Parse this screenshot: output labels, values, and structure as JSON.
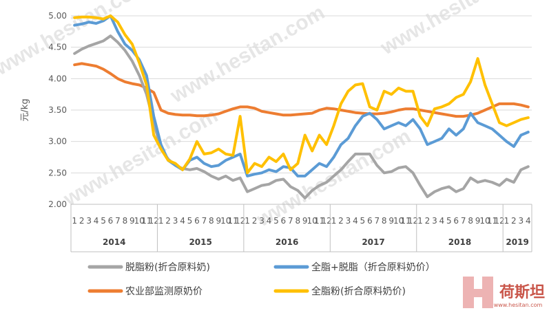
{
  "chart_data": {
    "type": "line",
    "ylabel": "元/kg",
    "ylim": [
      2.0,
      5.0
    ],
    "yticks": [
      "2.00",
      "2.50",
      "3.00",
      "3.50",
      "4.00",
      "4.50",
      "5.00"
    ],
    "grid": true,
    "legend_position": "bottom",
    "years": [
      {
        "label": "2014",
        "months": 12
      },
      {
        "label": "2015",
        "months": 12
      },
      {
        "label": "2016",
        "months": 12
      },
      {
        "label": "2017",
        "months": 12
      },
      {
        "label": "2018",
        "months": 12
      },
      {
        "label": "2019",
        "months": 4
      }
    ],
    "series": [
      {
        "name": "脱脂粉(折合原料奶)",
        "color": "#a5a5a5",
        "values": [
          4.4,
          4.47,
          4.52,
          4.56,
          4.6,
          4.68,
          4.58,
          4.45,
          4.28,
          4.05,
          3.75,
          3.3,
          2.88,
          2.72,
          2.62,
          2.57,
          2.55,
          2.57,
          2.52,
          2.45,
          2.4,
          2.45,
          2.38,
          2.42,
          2.2,
          2.25,
          2.3,
          2.32,
          2.38,
          2.4,
          2.28,
          2.22,
          2.1,
          2.22,
          2.3,
          2.35,
          2.45,
          2.55,
          2.68,
          2.8,
          2.8,
          2.8,
          2.62,
          2.5,
          2.52,
          2.58,
          2.6,
          2.5,
          2.3,
          2.12,
          2.2,
          2.25,
          2.28,
          2.2,
          2.25,
          2.42,
          2.35,
          2.38,
          2.35,
          2.3,
          2.4,
          2.35,
          2.55,
          2.6
        ]
      },
      {
        "name": "全脂+脱脂（折合原料奶价）",
        "color": "#5b9bd5",
        "values": [
          4.85,
          4.87,
          4.9,
          4.88,
          4.92,
          5.0,
          4.75,
          4.55,
          4.45,
          4.3,
          4.05,
          3.4,
          2.95,
          2.7,
          2.62,
          2.55,
          2.7,
          2.75,
          2.65,
          2.6,
          2.62,
          2.7,
          2.75,
          2.8,
          2.45,
          2.48,
          2.5,
          2.55,
          2.52,
          2.6,
          2.58,
          2.45,
          2.45,
          2.55,
          2.65,
          2.6,
          2.75,
          2.95,
          3.05,
          3.25,
          3.4,
          3.45,
          3.35,
          3.2,
          3.25,
          3.3,
          3.25,
          3.35,
          3.2,
          2.95,
          3.0,
          3.05,
          3.2,
          3.1,
          3.2,
          3.45,
          3.3,
          3.25,
          3.2,
          3.1,
          3.0,
          2.92,
          3.1,
          3.15
        ]
      },
      {
        "name": "农业部监测原奶价",
        "color": "#ed7d31",
        "values": [
          4.22,
          4.24,
          4.22,
          4.2,
          4.15,
          4.08,
          4.0,
          3.95,
          3.92,
          3.9,
          3.85,
          3.78,
          3.5,
          3.45,
          3.43,
          3.42,
          3.42,
          3.41,
          3.41,
          3.42,
          3.44,
          3.48,
          3.52,
          3.55,
          3.55,
          3.53,
          3.48,
          3.46,
          3.44,
          3.42,
          3.42,
          3.43,
          3.44,
          3.45,
          3.5,
          3.53,
          3.52,
          3.5,
          3.48,
          3.46,
          3.45,
          3.44,
          3.44,
          3.45,
          3.47,
          3.5,
          3.52,
          3.52,
          3.5,
          3.48,
          3.46,
          3.44,
          3.42,
          3.4,
          3.4,
          3.42,
          3.45,
          3.5,
          3.55,
          3.6,
          3.6,
          3.6,
          3.58,
          3.55
        ]
      },
      {
        "name": "全脂粉(折合原料奶价)",
        "color": "#ffc000",
        "values": [
          4.97,
          4.98,
          4.98,
          4.97,
          4.95,
          5.0,
          4.9,
          4.7,
          4.55,
          4.25,
          3.9,
          3.1,
          2.88,
          2.7,
          2.65,
          2.55,
          2.72,
          3.0,
          2.8,
          2.82,
          2.88,
          2.8,
          2.78,
          3.4,
          2.5,
          2.65,
          2.6,
          2.75,
          2.68,
          2.8,
          2.55,
          2.65,
          3.1,
          2.85,
          3.1,
          2.95,
          3.25,
          3.6,
          3.8,
          3.9,
          3.92,
          3.55,
          3.5,
          3.8,
          3.75,
          3.85,
          3.8,
          3.8,
          3.4,
          3.25,
          3.52,
          3.55,
          3.6,
          3.7,
          3.75,
          3.95,
          4.32,
          3.9,
          3.6,
          3.3,
          3.25,
          3.3,
          3.35,
          3.38
        ]
      }
    ]
  },
  "watermark": {
    "text": "www.hesitan.com"
  },
  "logo": {
    "text": "荷斯坦",
    "url_text": "www.hesitan.com"
  }
}
